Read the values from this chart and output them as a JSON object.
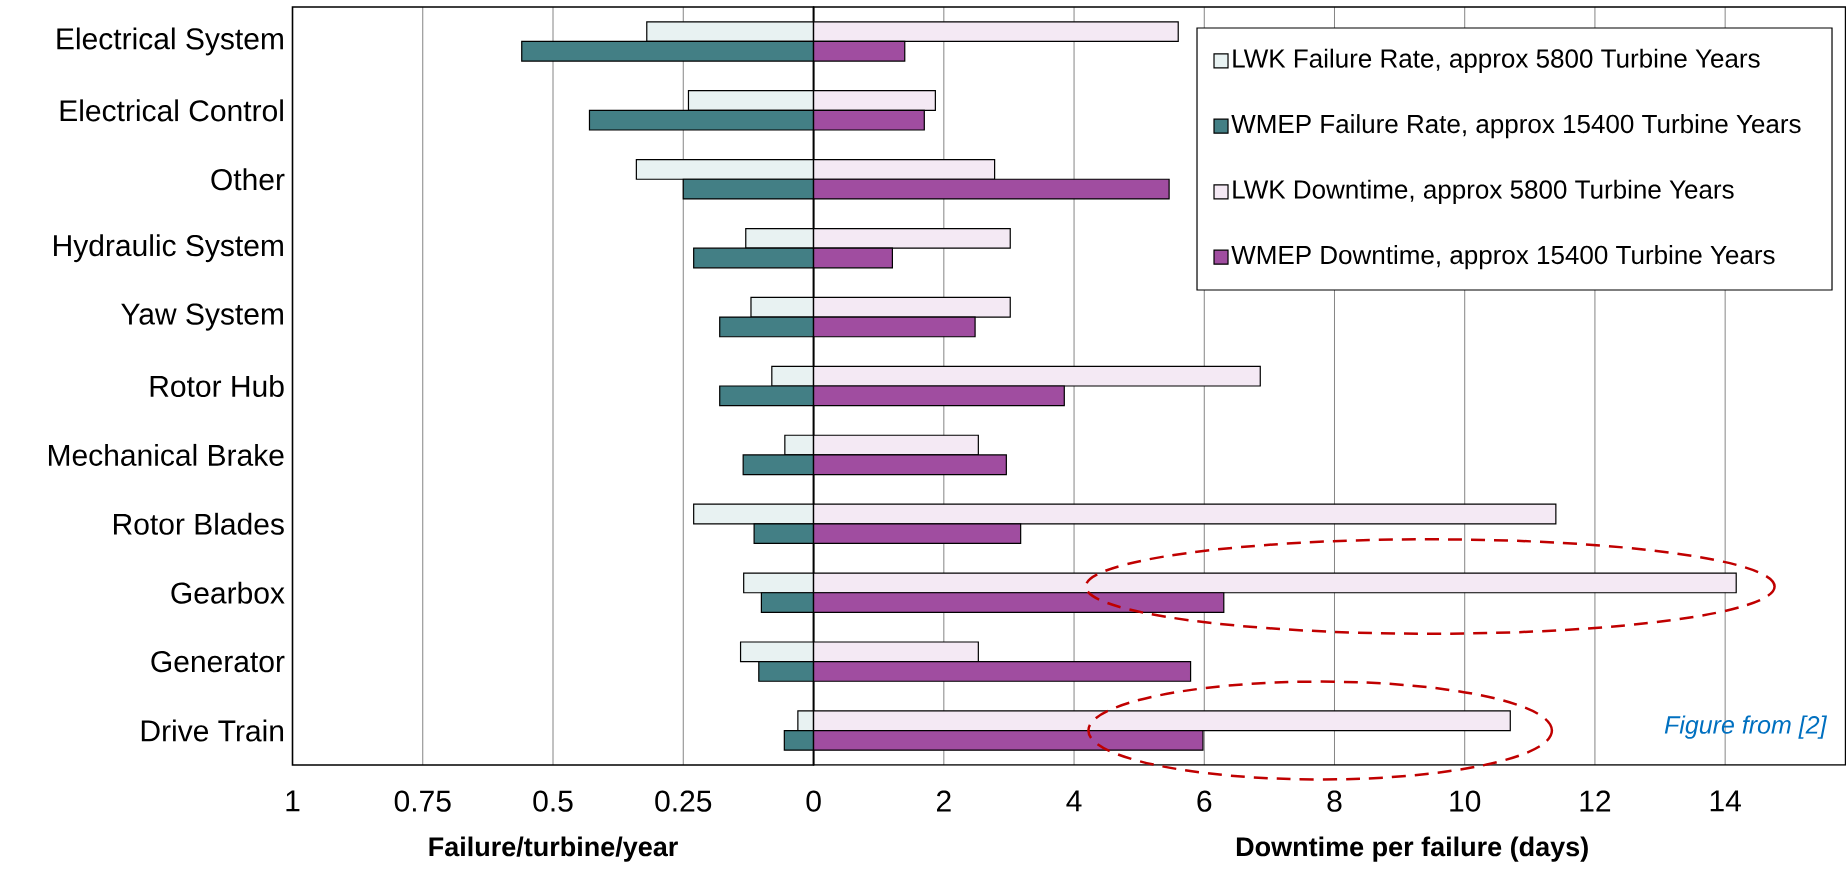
{
  "chart_data": [
    {
      "type": "bar",
      "orientation": "horizontal",
      "xlabel": "Failure/turbine/year",
      "categories": [
        "Electrical System",
        "Electrical Control",
        "Other",
        "Hydraulic System",
        "Yaw System",
        "Rotor Hub",
        "Mechanical Brake",
        "Rotor Blades",
        "Gearbox",
        "Generator",
        "Drive Train"
      ],
      "series": [
        {
          "name": "LWK Failure Rate, approx 5800 Turbine Years",
          "color": "#e8f2f2",
          "values": [
            0.32,
            0.24,
            0.34,
            0.13,
            0.12,
            0.08,
            0.055,
            0.23,
            0.134,
            0.14,
            0.03
          ]
        },
        {
          "name": "WMEP Failure Rate, approx 15400 Turbine Years",
          "color": "#437f85",
          "values": [
            0.56,
            0.43,
            0.25,
            0.23,
            0.18,
            0.18,
            0.135,
            0.114,
            0.1,
            0.105,
            0.056
          ]
        }
      ],
      "xlim": [
        1,
        0
      ],
      "xticks": [
        1,
        0.75,
        0.5,
        0.25
      ],
      "grid": "x",
      "legend": "top right"
    },
    {
      "type": "bar",
      "orientation": "horizontal",
      "xlabel": "Downtime per failure (days)",
      "series": [
        {
          "name": "LWK Downtime, approx 5800 Turbine Years",
          "color": "#f4e9f4",
          "values": [
            5.6,
            1.87,
            2.78,
            3.02,
            3.02,
            6.86,
            2.53,
            11.4,
            14.17,
            2.53,
            10.7
          ]
        },
        {
          "name": "WMEP Downtime, approx 15400 Turbine Years",
          "color": "#a04da0",
          "values": [
            1.4,
            1.7,
            5.46,
            1.21,
            2.48,
            3.85,
            2.96,
            3.18,
            6.3,
            5.79,
            5.98
          ]
        }
      ],
      "xlim": [
        0,
        15.85
      ],
      "xticks": [
        0,
        2,
        4,
        6,
        8,
        10,
        12,
        14
      ],
      "grid": "x",
      "legend": "top right",
      "annotations": [
        "Figure from [2]"
      ]
    }
  ]
}
